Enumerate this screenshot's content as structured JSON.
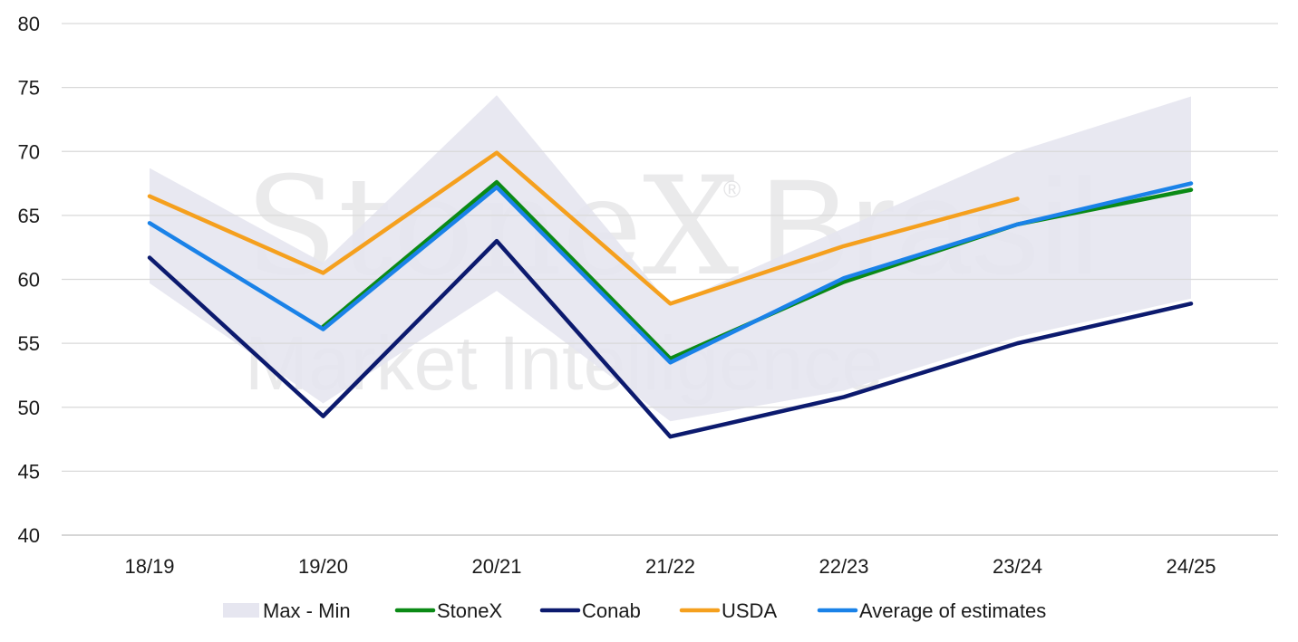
{
  "watermark": {
    "brand": "StoneX",
    "brand_suffix": "Brasil",
    "registered": "®",
    "tagline": "Market Intelligence"
  },
  "chart_data": {
    "type": "line",
    "categories": [
      "18/19",
      "19/20",
      "20/21",
      "21/22",
      "22/23",
      "23/24",
      "24/25"
    ],
    "ylim": [
      40,
      80
    ],
    "yticks": [
      40,
      45,
      50,
      55,
      60,
      65,
      70,
      75,
      80
    ],
    "grid": true,
    "legend_position": "bottom",
    "band": {
      "name": "Max - Min",
      "color": "#e6e6f0",
      "max": [
        68.7,
        61.3,
        74.4,
        58.0,
        64.0,
        70.0,
        74.3
      ],
      "min": [
        59.7,
        50.3,
        59.1,
        48.9,
        51.3,
        55.5,
        58.5
      ]
    },
    "series": [
      {
        "name": "StoneX",
        "color": "#0b8a16",
        "values": [
          null,
          56.3,
          67.6,
          53.8,
          59.8,
          64.3,
          67.0
        ]
      },
      {
        "name": "Conab",
        "color": "#0c1a6e",
        "values": [
          61.7,
          49.3,
          63.0,
          47.7,
          50.8,
          55.0,
          58.1
        ]
      },
      {
        "name": "USDA",
        "color": "#f5a01e",
        "values": [
          66.5,
          60.5,
          69.9,
          58.1,
          62.6,
          66.3,
          null
        ]
      },
      {
        "name": "Average of estimates",
        "color": "#1a82e8",
        "values": [
          64.4,
          56.1,
          67.2,
          53.5,
          60.1,
          64.3,
          67.5
        ]
      }
    ]
  }
}
